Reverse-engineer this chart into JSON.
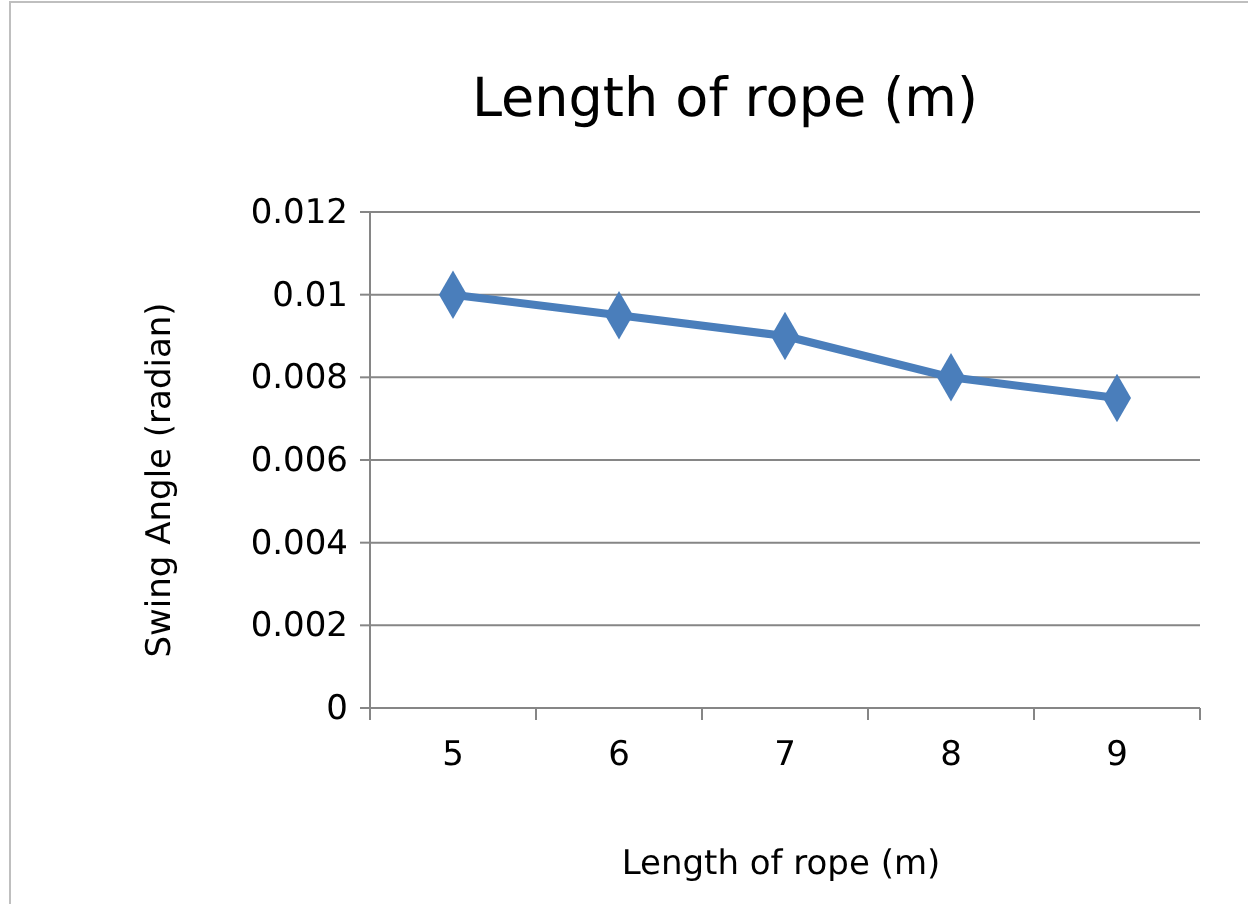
{
  "chart_data": {
    "type": "line",
    "title": "Length of rope (m)",
    "xlabel": "Length of rope (m)",
    "ylabel": "Swing Angle (radian)",
    "categories": [
      "5",
      "6",
      "7",
      "8",
      "9"
    ],
    "series": [
      {
        "color": "#4a7ebb",
        "values": [
          0.01,
          0.0095,
          0.009,
          0.008,
          0.0075
        ]
      }
    ],
    "ylim": [
      0,
      0.012
    ],
    "yticks": [
      0,
      0.002,
      0.004,
      0.006,
      0.008,
      0.01,
      0.012
    ],
    "grid": "y",
    "marker": "diamond",
    "line_style": "solid"
  }
}
